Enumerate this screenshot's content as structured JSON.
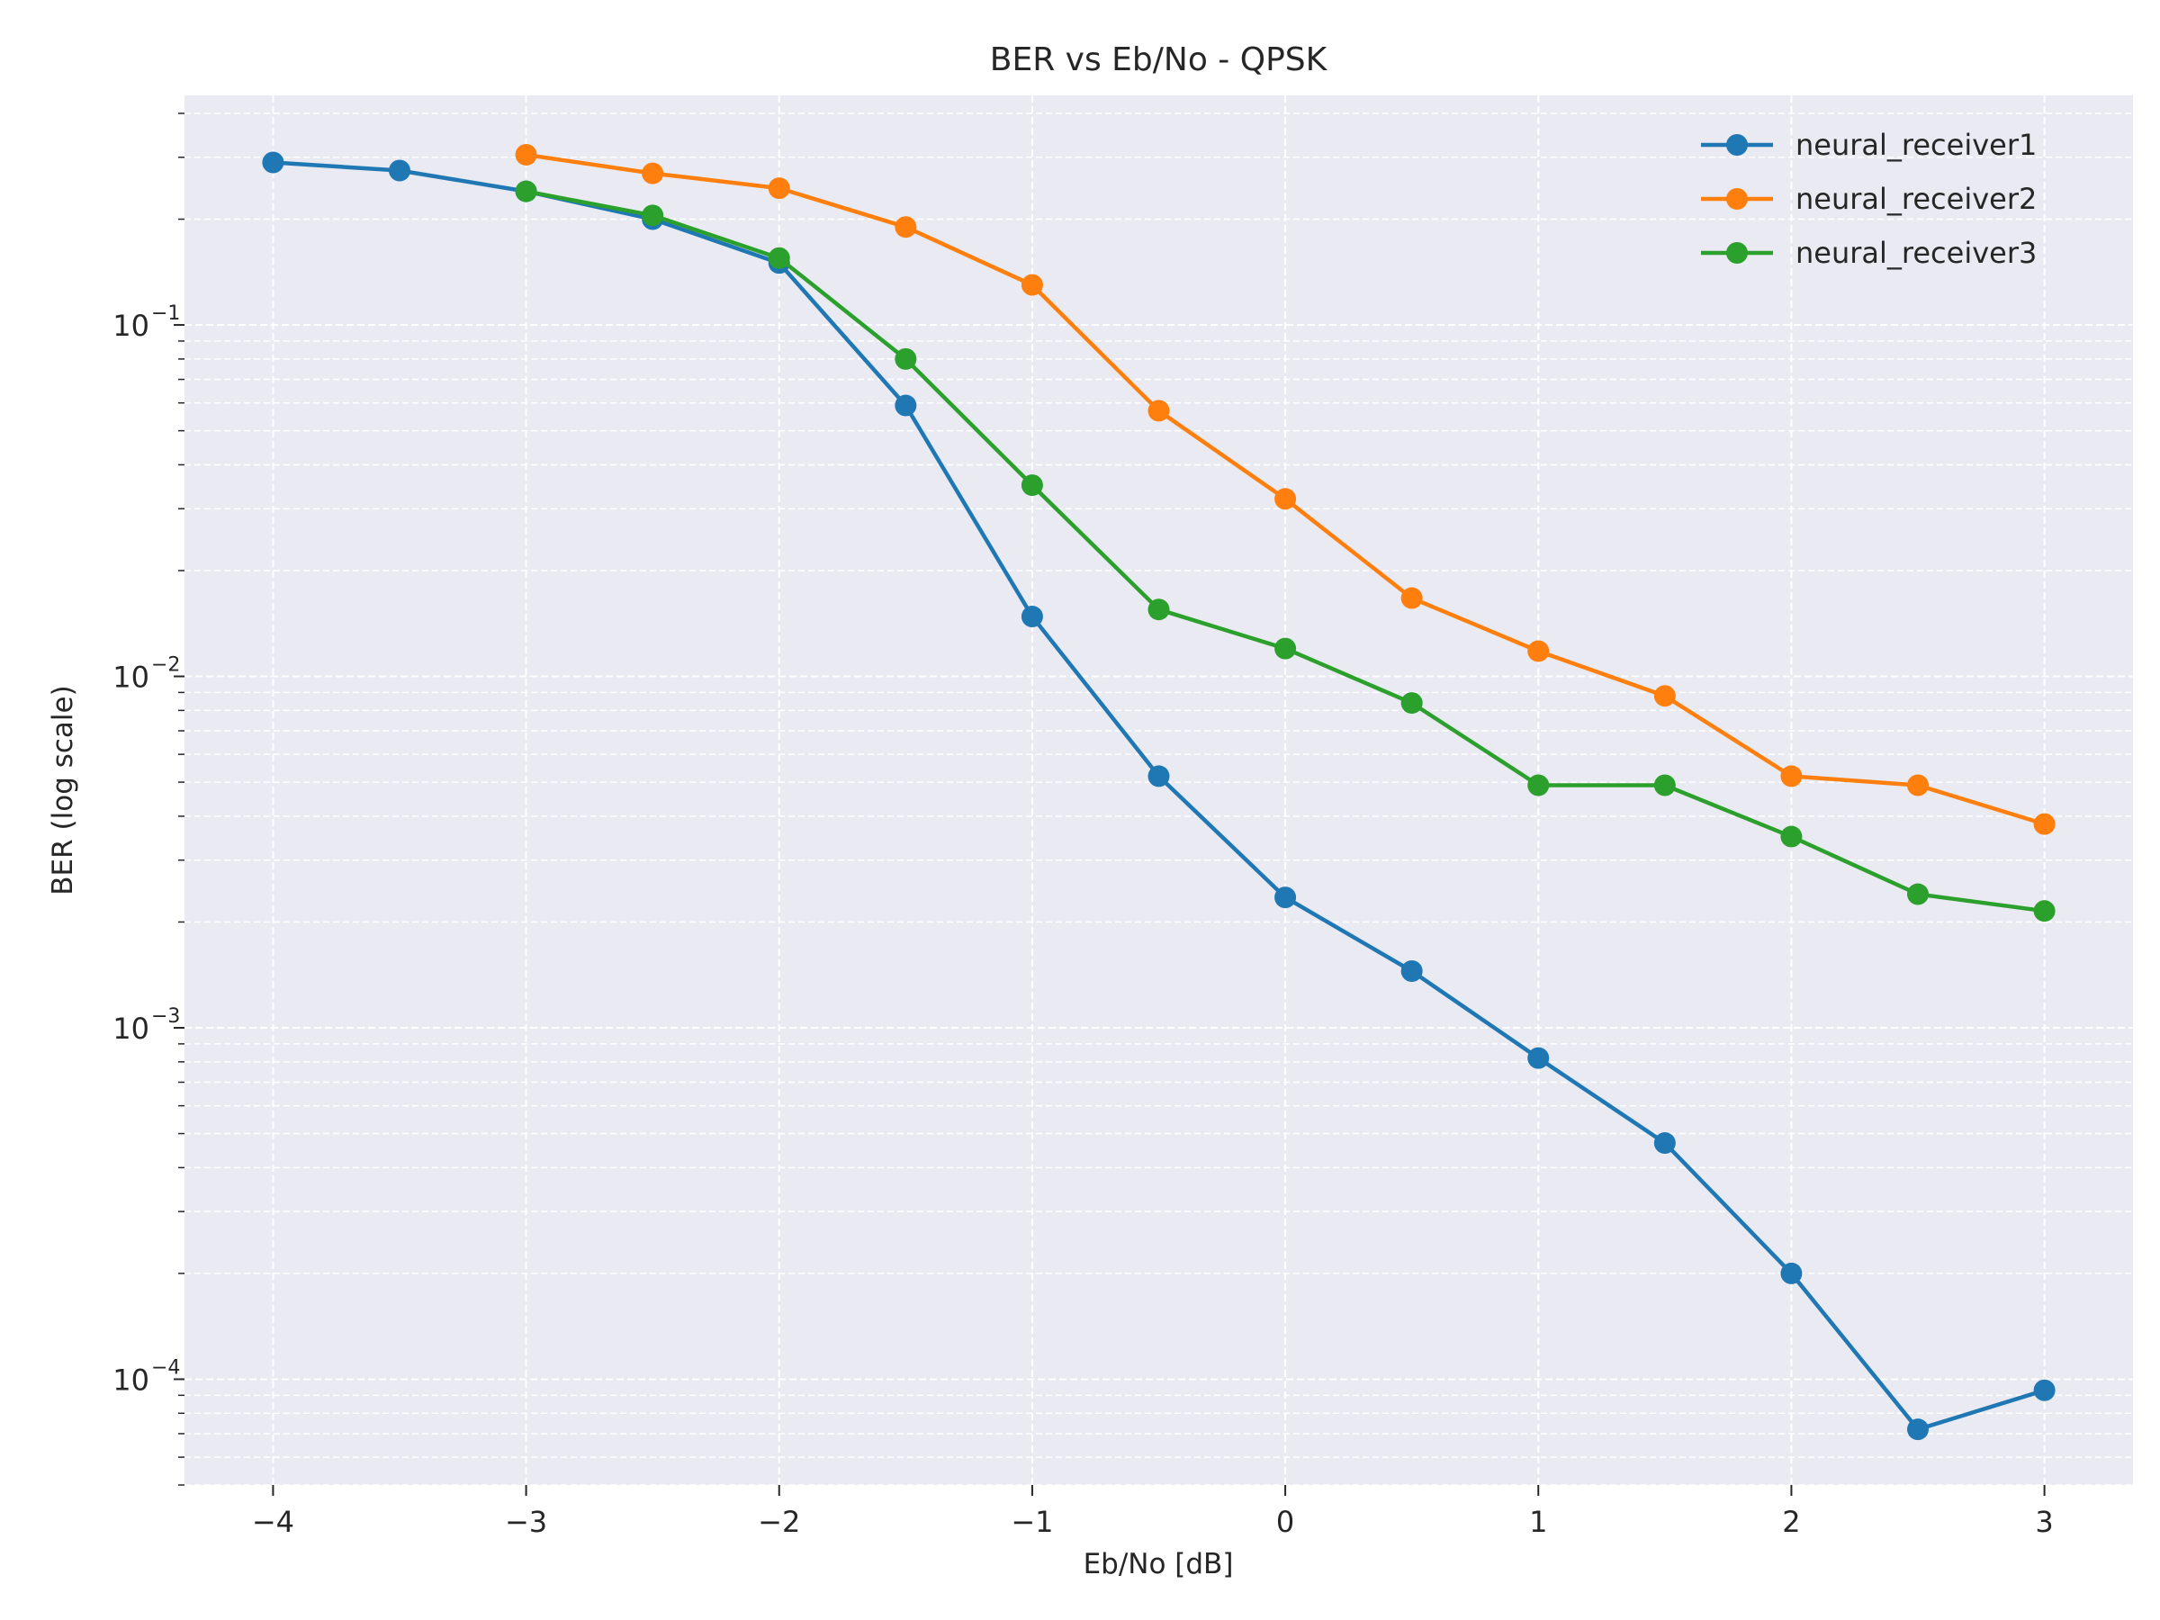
{
  "chart_data": {
    "type": "line",
    "title": "BER vs Eb/No - QPSK",
    "xlabel": "Eb/No [dB]",
    "ylabel": "BER (log scale)",
    "yscale": "log",
    "xlim": [
      -4.35,
      3.35
    ],
    "ylim": [
      5e-05,
      0.45
    ],
    "grid": true,
    "legend_position": "top-right",
    "x_ticks": [
      {
        "value": -4,
        "label": "−4"
      },
      {
        "value": -3,
        "label": "−3"
      },
      {
        "value": -2,
        "label": "−2"
      },
      {
        "value": -1,
        "label": "−1"
      },
      {
        "value": 0,
        "label": "0"
      },
      {
        "value": 1,
        "label": "1"
      },
      {
        "value": 2,
        "label": "2"
      },
      {
        "value": 3,
        "label": "3"
      }
    ],
    "y_ticks": [
      {
        "value": 0.1,
        "base": "10",
        "exp": "−1"
      },
      {
        "value": 0.01,
        "base": "10",
        "exp": "−2"
      },
      {
        "value": 0.001,
        "base": "10",
        "exp": "−3"
      },
      {
        "value": 0.0001,
        "base": "10",
        "exp": "−4"
      }
    ],
    "series": [
      {
        "name": "neural_receiver1",
        "color": "#1f77b4",
        "x": [
          -4,
          -3.5,
          -3,
          -2.5,
          -2,
          -1.5,
          -1,
          -0.5,
          0,
          0.5,
          1,
          1.5,
          2,
          2.5,
          3
        ],
        "y": [
          0.29,
          0.275,
          0.24,
          0.2,
          0.15,
          0.059,
          0.0148,
          0.0052,
          0.00235,
          0.00145,
          0.00082,
          0.00047,
          0.0002,
          7.2e-05,
          9.3e-05
        ]
      },
      {
        "name": "neural_receiver2",
        "color": "#ff7f0e",
        "x": [
          -3,
          -2.5,
          -2,
          -1.5,
          -1,
          -0.5,
          0,
          0.5,
          1,
          1.5,
          2,
          2.5,
          3
        ],
        "y": [
          0.305,
          0.27,
          0.245,
          0.19,
          0.13,
          0.057,
          0.032,
          0.0167,
          0.0118,
          0.0088,
          0.0052,
          0.0049,
          0.0038
        ]
      },
      {
        "name": "neural_receiver3",
        "color": "#2ca02c",
        "x": [
          -3,
          -2.5,
          -2,
          -1.5,
          -1,
          -0.5,
          0,
          0.5,
          1,
          1.5,
          2,
          2.5,
          3
        ],
        "y": [
          0.24,
          0.205,
          0.155,
          0.08,
          0.035,
          0.0155,
          0.012,
          0.0084,
          0.0049,
          0.0049,
          0.0035,
          0.0024,
          0.00215
        ]
      }
    ]
  }
}
